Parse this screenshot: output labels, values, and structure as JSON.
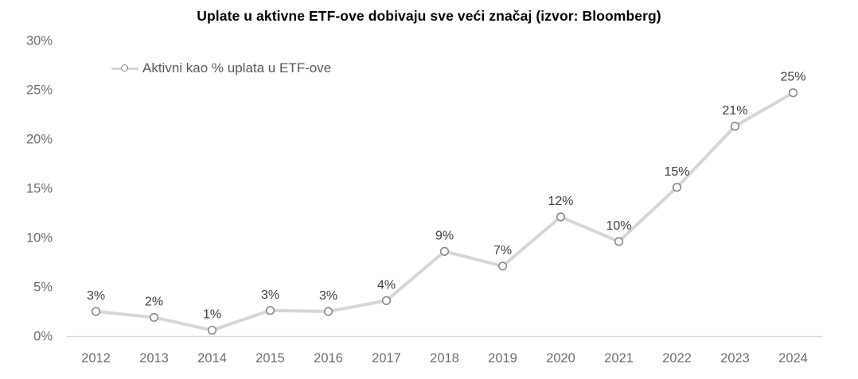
{
  "chart": {
    "title": "Uplate u aktivne ETF-ove dobivaju sve veći značaj (izvor: Bloomberg)",
    "legend_label": "Aktivni kao % uplata u ETF-ove"
  },
  "chart_data": {
    "type": "line",
    "title": "Uplate u aktivne ETF-ove dobivaju sve veći značaj (izvor: Bloomberg)",
    "xlabel": "",
    "ylabel": "",
    "categories": [
      "2012",
      "2013",
      "2014",
      "2015",
      "2016",
      "2017",
      "2018",
      "2019",
      "2020",
      "2021",
      "2022",
      "2023",
      "2024"
    ],
    "series": [
      {
        "name": "Aktivni kao % uplata u ETF-ove",
        "values": [
          2.5,
          1.9,
          0.6,
          2.6,
          2.5,
          3.6,
          8.6,
          7.1,
          12.1,
          9.6,
          15.1,
          21.3,
          24.7
        ],
        "point_labels": [
          "3%",
          "2%",
          "1%",
          "3%",
          "3%",
          "4%",
          "9%",
          "7%",
          "12%",
          "10%",
          "15%",
          "21%",
          "25%"
        ]
      }
    ],
    "ylim": [
      0,
      30
    ],
    "yticks": [
      0,
      5,
      10,
      15,
      20,
      25,
      30
    ],
    "ytick_labels": [
      "0%",
      "5%",
      "10%",
      "15%",
      "20%",
      "25%",
      "30%"
    ],
    "grid": false,
    "legend_position": "top-left",
    "marker_style": "open-circle",
    "colors": {
      "line": "#d6d6d6",
      "marker_stroke": "#898989",
      "marker_fill": "#ffffff",
      "axis_line": "#d9d9d9",
      "tick": "#6e6e6e",
      "label": "#3f3f3f",
      "title": "#000000",
      "legend_text": "#595959"
    }
  }
}
